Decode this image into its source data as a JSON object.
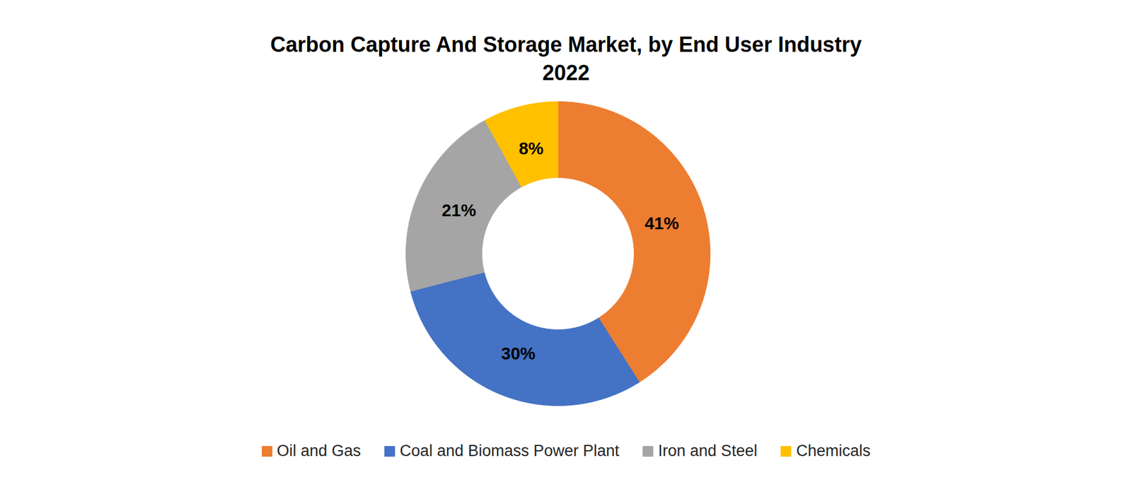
{
  "chart_data": {
    "type": "donut",
    "title": "Carbon Capture And Storage Market, by End User Industry",
    "subtitle": "2022",
    "categories": [
      "Oil and Gas",
      "Coal and Biomass Power Plant",
      "Iron and Steel",
      "Chemicals"
    ],
    "values": [
      41,
      30,
      21,
      8
    ],
    "value_labels": [
      "41%",
      "30%",
      "21%",
      "8%"
    ],
    "colors": [
      "#ED7D31",
      "#4472C4",
      "#A5A5A5",
      "#FFC000"
    ],
    "data_labels": true,
    "legend": "bottom"
  }
}
